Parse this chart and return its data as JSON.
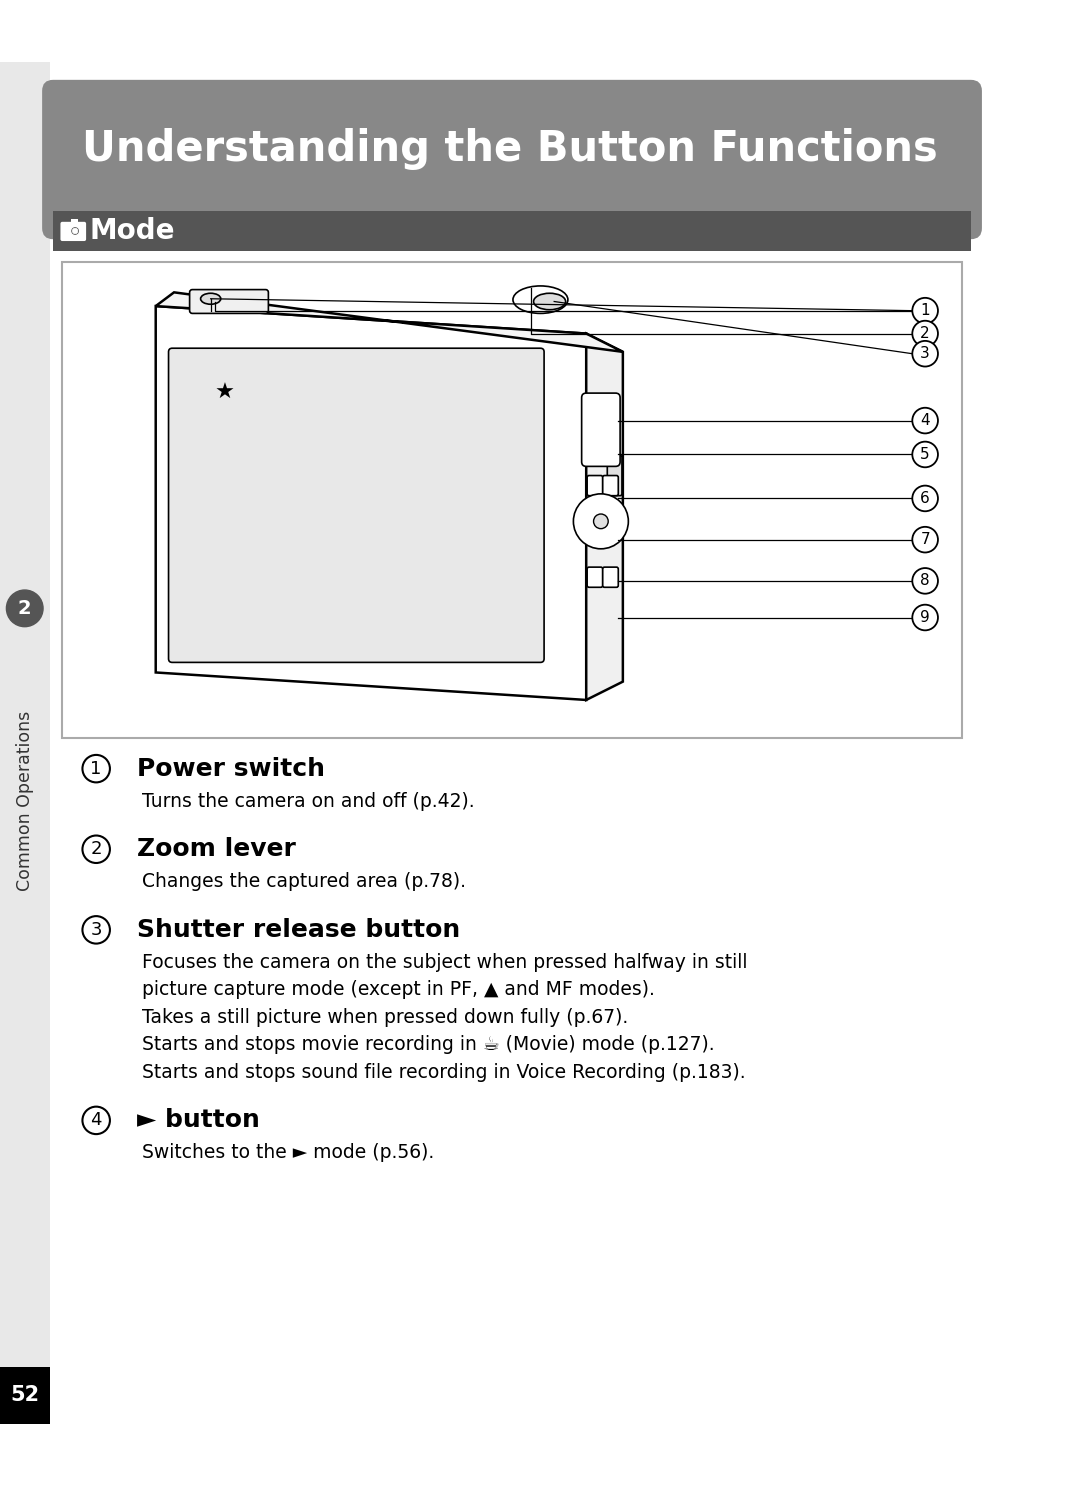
{
  "title": "Understanding the Button Functions",
  "title_bg_color": "#888888",
  "title_text_color": "#ffffff",
  "mode_bg_color": "#555555",
  "mode_text_color": "#ffffff",
  "sidebar_color": "#888888",
  "sidebar_text": "Common Operations",
  "sidebar_num": "2",
  "page_num": "52",
  "page_num_bg": "#000000",
  "page_bg": "#ffffff",
  "items": [
    {
      "num": "1",
      "title": "Power switch",
      "desc_lines": [
        "Turns the camera on and off (p.42)."
      ]
    },
    {
      "num": "2",
      "title": "Zoom lever",
      "desc_lines": [
        "Changes the captured area (p.78)."
      ]
    },
    {
      "num": "3",
      "title": "Shutter release button",
      "desc_lines": [
        "Focuses the camera on the subject when pressed halfway in still",
        "picture capture mode (except in PF, ▲ and MF modes).",
        "Takes a still picture when pressed down fully (p.67).",
        "Starts and stops movie recording in ☕ (Movie) mode (p.127).",
        "Starts and stops sound file recording in Voice Recording (p.183)."
      ]
    },
    {
      "num": "4",
      "title": "► button",
      "desc_lines": [
        "Switches to the ► mode (p.56)."
      ]
    }
  ]
}
